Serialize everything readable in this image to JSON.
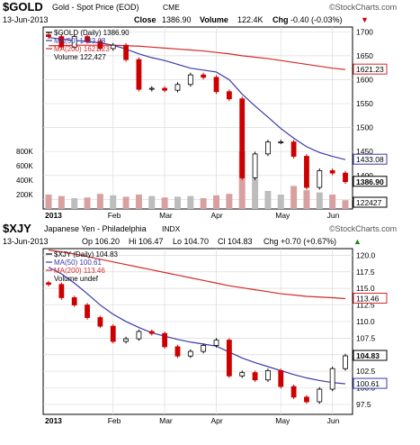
{
  "top": {
    "symbol": "$GOLD",
    "name": "Gold - Spot Price (EOD)",
    "exchange": "CME",
    "brand": "©StockCharts.com",
    "date": "13-Jun-2013",
    "close_label": "Close",
    "close_value": "1386.90",
    "volume_label": "Volume",
    "volume_value": "122.4K",
    "chg_label": "Chg",
    "chg_value": "-0.40 (-0.03%)",
    "chg_arrow": "▼",
    "legend": [
      {
        "text": "$GOLD (Daily) 1386.90",
        "color": "#000000"
      },
      {
        "text": "MA(50) 1433.08",
        "color": "#3a3aa8"
      },
      {
        "text": "MA(200) 1621.23",
        "color": "#d42a2a"
      },
      {
        "text": "Volume 122,427",
        "color": "#000000"
      }
    ],
    "yticks": [
      "1700",
      "1650",
      "1600",
      "1550",
      "1500",
      "1450",
      "1400",
      "1350"
    ],
    "vol_ticks": [
      "800K",
      "600K",
      "400K",
      "200K"
    ],
    "xticks": [
      "2013",
      "Feb",
      "Mar",
      "Apr",
      "May",
      "Jun"
    ],
    "boxes": [
      "1621.23",
      "1433.08",
      "1386.90",
      "122427"
    ]
  },
  "bottom": {
    "symbol": "$XJY",
    "name": "Japanese Yen - Philadelphia",
    "exchange": "INDX",
    "brand": "©StockCharts.com",
    "date": "13-Jun-2013",
    "op": "Op 106.20",
    "hi": "Hi 106.47",
    "lo": "Lo 104.70",
    "cl": "Cl 104.83",
    "chg": "Chg +0.70 (+0.67%)",
    "chg_arrow": "▲",
    "legend": [
      {
        "text": "$XJY (Daily) 104.83",
        "color": "#000000"
      },
      {
        "text": "MA(50) 100.61",
        "color": "#3a3aa8"
      },
      {
        "text": "MA(200) 113.46",
        "color": "#d42a2a"
      },
      {
        "text": "Volume undef",
        "color": "#000000"
      }
    ],
    "yticks": [
      "120.0",
      "117.5",
      "115.0",
      "112.5",
      "110.0",
      "107.5",
      "105.0",
      "102.5",
      "100.0",
      "97.5"
    ],
    "xticks": [
      "2013",
      "Feb",
      "Mar",
      "Apr",
      "May",
      "Jun"
    ],
    "boxes": [
      "113.46",
      "104.83",
      "100.61"
    ]
  },
  "chart_data": [
    {
      "type": "candlestick",
      "title": "$GOLD Gold - Spot Price (EOD) CME",
      "ylim": [
        1330,
        1710
      ],
      "x": [
        "2013-01-02",
        "2013-01-09",
        "2013-01-16",
        "2013-01-23",
        "2013-01-30",
        "2013-02-06",
        "2013-02-13",
        "2013-02-20",
        "2013-02-27",
        "2013-03-06",
        "2013-03-13",
        "2013-03-20",
        "2013-03-27",
        "2013-04-03",
        "2013-04-10",
        "2013-04-17",
        "2013-04-24",
        "2013-05-01",
        "2013-05-08",
        "2013-05-15",
        "2013-05-22",
        "2013-05-29",
        "2013-06-05",
        "2013-06-13"
      ],
      "close": [
        1690,
        1668,
        1690,
        1680,
        1665,
        1672,
        1642,
        1580,
        1582,
        1578,
        1590,
        1610,
        1605,
        1575,
        1560,
        1395,
        1445,
        1470,
        1470,
        1440,
        1375,
        1410,
        1405,
        1386.9
      ],
      "series": [
        {
          "name": "MA(50)",
          "color": "#3a3aa8",
          "values": [
            1688,
            1685,
            1682,
            1680,
            1677,
            1672,
            1664,
            1654,
            1646,
            1640,
            1632,
            1624,
            1620,
            1616,
            1600,
            1570,
            1545,
            1522,
            1498,
            1478,
            1460,
            1448,
            1440,
            1433.08
          ]
        },
        {
          "name": "MA(200)",
          "color": "#d42a2a",
          "values": [
            1671,
            1671,
            1672,
            1672,
            1672,
            1672,
            1671,
            1670,
            1668,
            1666,
            1664,
            1662,
            1660,
            1657,
            1654,
            1650,
            1647,
            1644,
            1640,
            1636,
            1632,
            1628,
            1624,
            1621.23
          ]
        }
      ],
      "volume": [
        200,
        180,
        150,
        160,
        210,
        190,
        170,
        200,
        180,
        160,
        170,
        180,
        150,
        190,
        210,
        800,
        420,
        250,
        200,
        320,
        260,
        230,
        200,
        122.427
      ],
      "volume_unit": "K"
    },
    {
      "type": "candlestick",
      "title": "$XJY Japanese Yen - Philadelphia INDX",
      "ylim": [
        96,
        121
      ],
      "x": [
        "2013-01-02",
        "2013-01-09",
        "2013-01-16",
        "2013-01-23",
        "2013-01-30",
        "2013-02-06",
        "2013-02-13",
        "2013-02-20",
        "2013-02-27",
        "2013-03-06",
        "2013-03-13",
        "2013-03-20",
        "2013-03-27",
        "2013-04-03",
        "2013-04-10",
        "2013-04-17",
        "2013-04-24",
        "2013-05-01",
        "2013-05-08",
        "2013-05-15",
        "2013-05-22",
        "2013-05-29",
        "2013-06-05",
        "2013-06-13"
      ],
      "close": [
        115.6,
        113.6,
        112.5,
        110.6,
        109.3,
        107.0,
        107.4,
        108.5,
        108.2,
        106.2,
        104.8,
        105.5,
        106.4,
        107.2,
        101.8,
        102.3,
        101.2,
        102.6,
        100.2,
        98.6,
        97.9,
        99.8,
        102.9,
        104.83
      ],
      "series": [
        {
          "name": "MA(50)",
          "color": "#3a3aa8",
          "values": [
            118.2,
            117.2,
            115.8,
            114.2,
            112.5,
            111.1,
            110.0,
            109.1,
            108.3,
            107.8,
            107.3,
            106.9,
            106.6,
            106.3,
            105.4,
            104.5,
            103.8,
            103.2,
            102.6,
            102.0,
            101.5,
            101.1,
            100.8,
            100.61
          ]
        },
        {
          "name": "MA(200)",
          "color": "#d42a2a",
          "values": [
            120.8,
            120.5,
            120.2,
            119.8,
            119.4,
            119.0,
            118.6,
            118.2,
            117.8,
            117.4,
            117.0,
            116.6,
            116.2,
            115.8,
            115.4,
            115.1,
            114.8,
            114.5,
            114.2,
            114.0,
            113.8,
            113.7,
            113.6,
            113.46
          ]
        }
      ]
    }
  ]
}
